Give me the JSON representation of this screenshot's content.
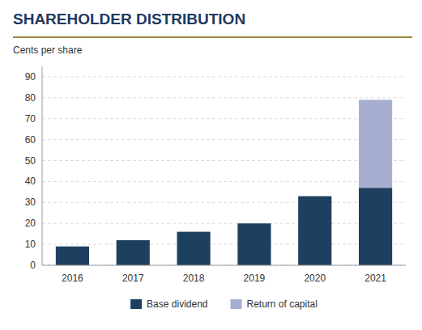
{
  "chart_data": {
    "type": "bar",
    "stacked": true,
    "title": "SHAREHOLDER DISTRIBUTION",
    "y_label": "Cents per share",
    "categories": [
      "2016",
      "2017",
      "2018",
      "2019",
      "2020",
      "2021"
    ],
    "series": [
      {
        "name": "Base dividend",
        "color": "#1e4060",
        "values": [
          9,
          12,
          16,
          20,
          33,
          37
        ]
      },
      {
        "name": "Return of capital",
        "color": "#a8aed0",
        "values": [
          0,
          0,
          0,
          0,
          0,
          42
        ]
      }
    ],
    "ylim": [
      0,
      95
    ],
    "yticks": [
      0,
      10,
      20,
      30,
      40,
      50,
      60,
      70,
      80,
      90
    ],
    "grid": true,
    "legend": "bottom"
  }
}
